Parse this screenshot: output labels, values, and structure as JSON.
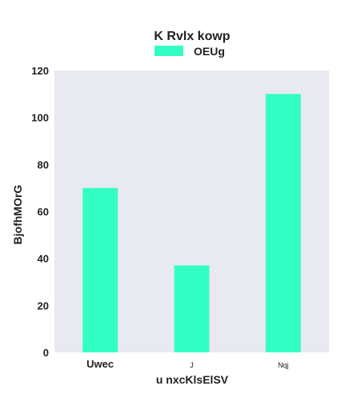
{
  "chart_data": {
    "type": "bar",
    "title": "K Rvlx kowp",
    "xlabel": "u nxcKlsElSV",
    "ylabel": "BjofhMOrG",
    "categories": [
      "Uwec",
      "J",
      "Nqj"
    ],
    "series": [
      {
        "name": "OEUg",
        "values": [
          70,
          37,
          110
        ]
      }
    ],
    "ylim": [
      0,
      120
    ],
    "yticks": [
      0,
      20,
      40,
      60,
      80,
      100,
      120
    ],
    "grid": false,
    "legend": "top-center",
    "colors": {
      "bar": "#33FFC4",
      "plot_bg": "#E9E9F1"
    }
  }
}
